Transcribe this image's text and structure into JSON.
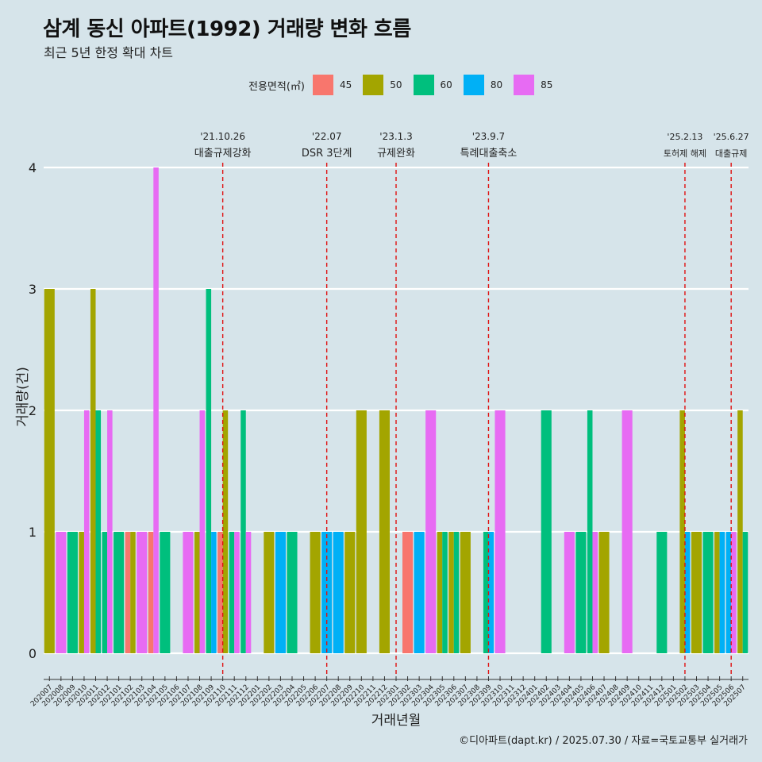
{
  "title": "삼계 동신 아파트(1992) 거래량 변화 흐름",
  "subtitle": "최근 5년 한정 확대 차트",
  "caption": "©디아파트(dapt.kr) / 2025.07.30 / 자료=국토교통부 실거래가",
  "legend": {
    "title": "전용면적(㎡)",
    "items": [
      {
        "label": "45",
        "color": "#F8766D"
      },
      {
        "label": "50",
        "color": "#A3A500"
      },
      {
        "label": "60",
        "color": "#00BF7D"
      },
      {
        "label": "80",
        "color": "#00B0F6"
      },
      {
        "label": "85",
        "color": "#E76BF3"
      }
    ]
  },
  "chart_data": {
    "type": "bar",
    "xlabel": "거래년월",
    "ylabel": "거래량(건)",
    "ylim": [
      0,
      4
    ],
    "yticks": [
      0,
      1,
      2,
      3,
      4
    ],
    "categories": [
      "202007",
      "202008",
      "202009",
      "202010",
      "202011",
      "202012",
      "202101",
      "202102",
      "202103",
      "202104",
      "202105",
      "202106",
      "202107",
      "202108",
      "202109",
      "202110",
      "202111",
      "202112",
      "202201",
      "202202",
      "202203",
      "202204",
      "202205",
      "202206",
      "202207",
      "202208",
      "202209",
      "202210",
      "202211",
      "202212",
      "202301",
      "202302",
      "202303",
      "202304",
      "202305",
      "202306",
      "202307",
      "202308",
      "202309",
      "202310",
      "202311",
      "202312",
      "202401",
      "202402",
      "202403",
      "202404",
      "202405",
      "202406",
      "202407",
      "202408",
      "202409",
      "202410",
      "202411",
      "202412",
      "202501",
      "202502",
      "202503",
      "202504",
      "202505",
      "202506",
      "202507"
    ],
    "bars": [
      {
        "month": "202007",
        "values": {
          "50": 3
        }
      },
      {
        "month": "202008",
        "values": {
          "85": 1
        }
      },
      {
        "month": "202009",
        "values": {
          "60": 1
        }
      },
      {
        "month": "202010",
        "values": {
          "50": 1,
          "85": 2
        }
      },
      {
        "month": "202011",
        "values": {
          "50": 3,
          "60": 2
        }
      },
      {
        "month": "202012",
        "values": {
          "60": 1,
          "85": 2
        }
      },
      {
        "month": "202101",
        "values": {
          "60": 1
        }
      },
      {
        "month": "202102",
        "values": {
          "45": 1,
          "50": 1
        }
      },
      {
        "month": "202103",
        "values": {
          "85": 1
        }
      },
      {
        "month": "202104",
        "values": {
          "45": 1,
          "85": 4
        }
      },
      {
        "month": "202105",
        "values": {
          "60": 1
        }
      },
      {
        "month": "202107",
        "values": {
          "85": 1
        }
      },
      {
        "month": "202108",
        "values": {
          "50": 1,
          "85": 2
        }
      },
      {
        "month": "202109",
        "values": {
          "60": 3,
          "80": 1
        }
      },
      {
        "month": "202110",
        "values": {
          "45": 1,
          "50": 2
        }
      },
      {
        "month": "202111",
        "values": {
          "60": 1,
          "85": 1
        }
      },
      {
        "month": "202112",
        "values": {
          "60": 2,
          "85": 1
        }
      },
      {
        "month": "202202",
        "values": {
          "50": 1
        }
      },
      {
        "month": "202203",
        "values": {
          "80": 1
        }
      },
      {
        "month": "202204",
        "values": {
          "60": 1
        }
      },
      {
        "month": "202206",
        "values": {
          "50": 1
        }
      },
      {
        "month": "202207",
        "values": {
          "80": 1
        }
      },
      {
        "month": "202208",
        "values": {
          "80": 1
        }
      },
      {
        "month": "202209",
        "values": {
          "50": 1
        }
      },
      {
        "month": "202210",
        "values": {
          "50": 2
        }
      },
      {
        "month": "202212",
        "values": {
          "50": 2
        }
      },
      {
        "month": "202302",
        "values": {
          "45": 1
        }
      },
      {
        "month": "202303",
        "values": {
          "80": 1
        }
      },
      {
        "month": "202304",
        "values": {
          "85": 2
        }
      },
      {
        "month": "202305",
        "values": {
          "50": 1,
          "60": 1
        }
      },
      {
        "month": "202306",
        "values": {
          "50": 1,
          "60": 1
        }
      },
      {
        "month": "202307",
        "values": {
          "50": 1
        }
      },
      {
        "month": "202309",
        "values": {
          "60": 1,
          "80": 1
        }
      },
      {
        "month": "202310",
        "values": {
          "85": 2
        }
      },
      {
        "month": "202402",
        "values": {
          "60": 2
        }
      },
      {
        "month": "202404",
        "values": {
          "85": 1
        }
      },
      {
        "month": "202405",
        "values": {
          "60": 1
        }
      },
      {
        "month": "202406",
        "values": {
          "60": 2,
          "85": 1
        }
      },
      {
        "month": "202407",
        "values": {
          "50": 1
        }
      },
      {
        "month": "202409",
        "values": {
          "85": 2
        }
      },
      {
        "month": "202412",
        "values": {
          "60": 1
        }
      },
      {
        "month": "202502",
        "values": {
          "50": 2,
          "80": 1
        }
      },
      {
        "month": "202503",
        "values": {
          "50": 1
        }
      },
      {
        "month": "202504",
        "values": {
          "60": 1
        }
      },
      {
        "month": "202505",
        "values": {
          "50": 1,
          "80": 1
        }
      },
      {
        "month": "202506",
        "values": {
          "85": 1,
          "80": 1
        }
      },
      {
        "month": "202507",
        "values": {
          "50": 2,
          "60": 1
        }
      }
    ],
    "events": [
      {
        "month": "202110",
        "date": "'21.10.26",
        "label": "대출규제강화"
      },
      {
        "month": "202207",
        "date": "'22.07",
        "label": "DSR 3단계"
      },
      {
        "month": "202301",
        "date": "'23.1.3",
        "label": "규제완화"
      },
      {
        "month": "202309",
        "date": "'23.9.7",
        "label": "특례대출축소"
      },
      {
        "month": "202502",
        "date": "'25.2.13",
        "label": "토허제 해제"
      },
      {
        "month": "202506",
        "date": "'25.6.27",
        "label": "대출규제"
      }
    ]
  }
}
